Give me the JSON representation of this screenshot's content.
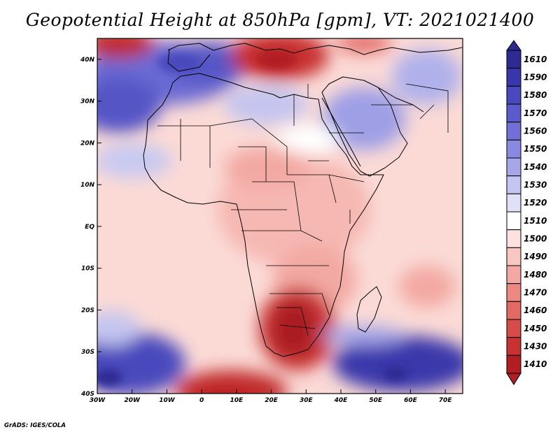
{
  "title": "Geopotential Height at 850hPa [gpm], VT: 2021021400",
  "credit": "GrADS: IGES/COLA",
  "map": {
    "projection": "lat-lon",
    "lon_range": [
      -30,
      75
    ],
    "lat_range": [
      -40,
      45
    ],
    "x_ticks": [
      "30W",
      "20W",
      "10W",
      "0",
      "10E",
      "20E",
      "30E",
      "40E",
      "50E",
      "60E",
      "70E"
    ],
    "y_ticks": [
      "40N",
      "30N",
      "20N",
      "10N",
      "EQ",
      "10S",
      "20S",
      "30S",
      "40S"
    ],
    "ocean_background_color": "#fbdad6"
  },
  "colorbar": {
    "levels": [
      "1610",
      "1590",
      "1580",
      "1570",
      "1560",
      "1550",
      "1540",
      "1530",
      "1520",
      "1510",
      "1500",
      "1490",
      "1480",
      "1470",
      "1460",
      "1450",
      "1430",
      "1410"
    ],
    "colors": [
      "#2d2a92",
      "#3a37ab",
      "#4a48bd",
      "#5b5bcc",
      "#7070d6",
      "#8989df",
      "#a6a6e8",
      "#c4c5f0",
      "#e0e1f7",
      "#ffffff",
      "#fde2df",
      "#f9c7c2",
      "#f3a9a3",
      "#ec8983",
      "#e26a65",
      "#d64c48",
      "#c83232",
      "#b01e22"
    ]
  }
}
